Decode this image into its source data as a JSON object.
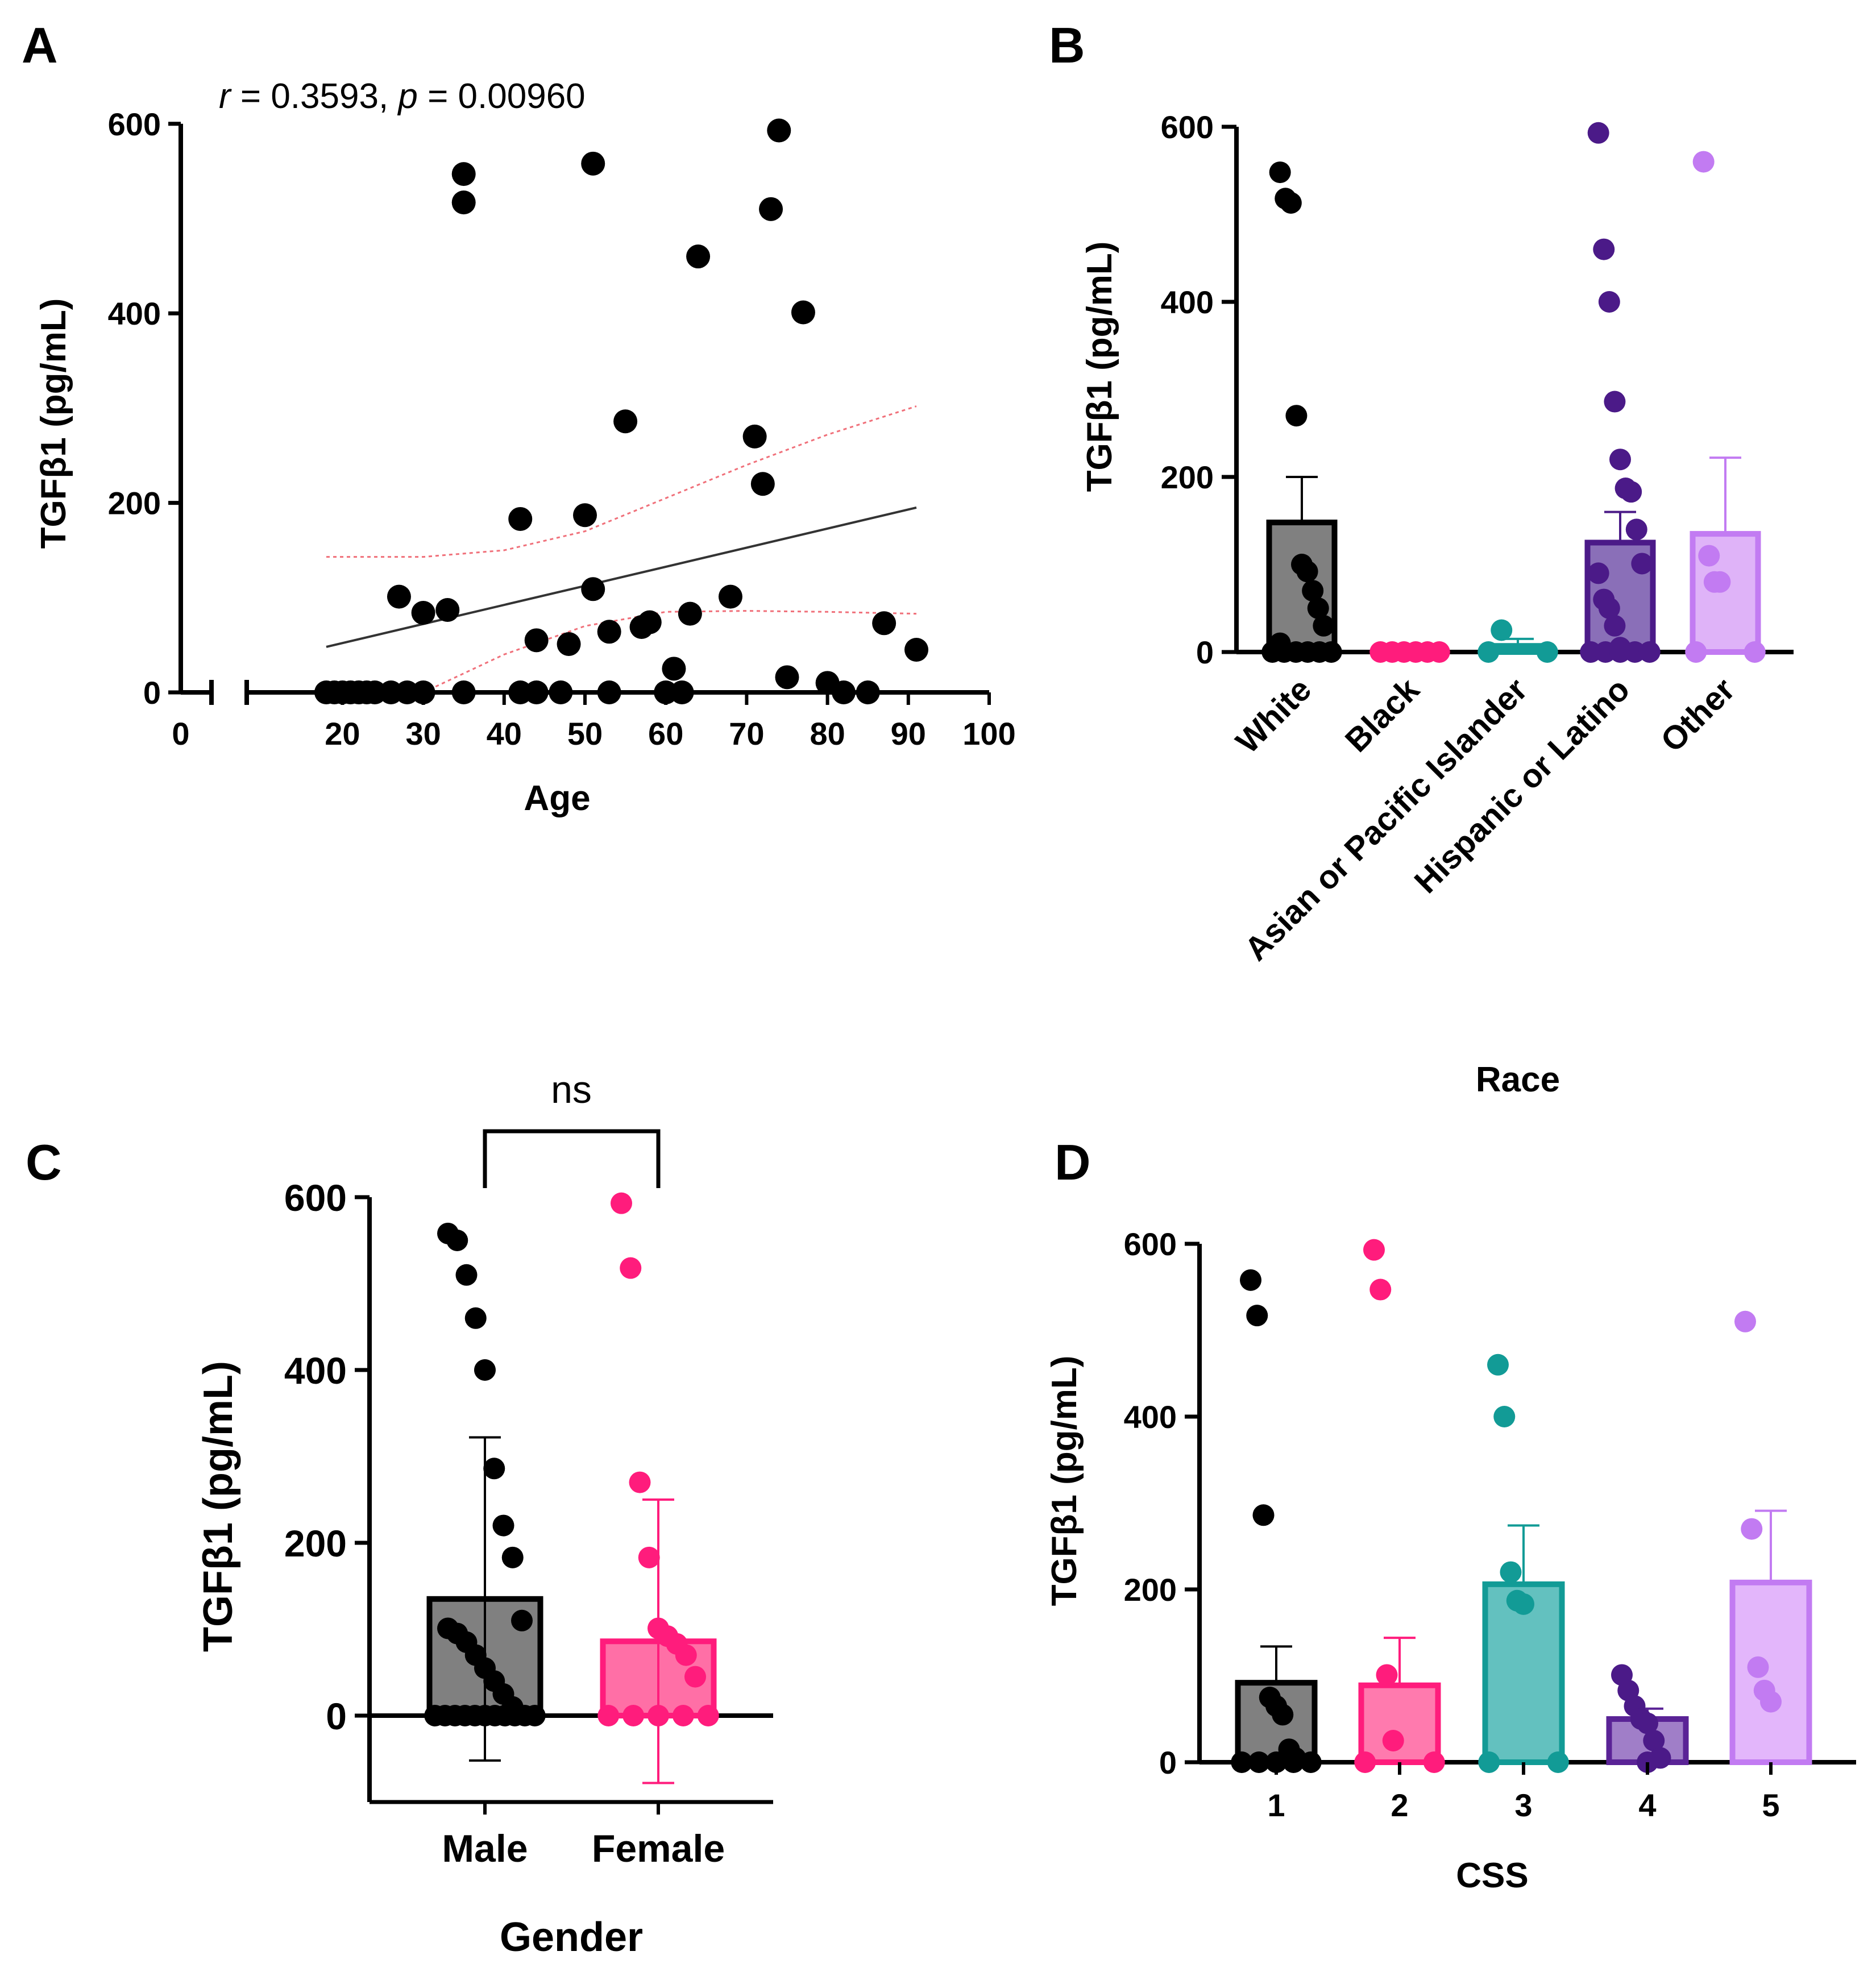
{
  "chart_data": [
    {
      "panel": "A",
      "type": "scatter",
      "annotation": {
        "r_symbol": "r",
        "r_text": " = 0.3593, ",
        "p_symbol": "p",
        "p_text": " = 0.00960"
      },
      "xlabel": "Age",
      "ylabel": "TGFβ1 (pg/mL)",
      "xlim": [
        0,
        100
      ],
      "ylim": [
        0,
        600
      ],
      "xticks": [
        0,
        20,
        30,
        40,
        50,
        60,
        70,
        80,
        90,
        100
      ],
      "yticks": [
        0,
        200,
        400,
        600
      ],
      "points": [
        [
          18,
          0
        ],
        [
          19,
          0
        ],
        [
          20,
          0
        ],
        [
          21,
          0
        ],
        [
          22,
          0
        ],
        [
          23,
          0
        ],
        [
          24,
          0
        ],
        [
          26,
          0
        ],
        [
          28,
          0
        ],
        [
          30,
          0
        ],
        [
          27,
          101
        ],
        [
          30,
          84
        ],
        [
          33,
          87
        ],
        [
          35,
          0
        ],
        [
          35,
          517
        ],
        [
          35,
          547
        ],
        [
          42,
          0
        ],
        [
          42,
          183
        ],
        [
          44,
          0
        ],
        [
          44,
          55
        ],
        [
          47,
          0
        ],
        [
          48,
          51
        ],
        [
          50,
          187
        ],
        [
          51,
          558
        ],
        [
          51,
          109
        ],
        [
          53,
          64
        ],
        [
          53,
          0
        ],
        [
          55,
          286
        ],
        [
          57,
          69
        ],
        [
          58,
          74
        ],
        [
          60,
          0
        ],
        [
          61,
          25
        ],
        [
          62,
          0
        ],
        [
          63,
          83
        ],
        [
          64,
          460
        ],
        [
          68,
          101
        ],
        [
          71,
          270
        ],
        [
          72,
          220
        ],
        [
          73,
          510
        ],
        [
          74,
          593
        ],
        [
          75,
          16
        ],
        [
          77,
          401
        ],
        [
          80,
          10
        ],
        [
          82,
          0
        ],
        [
          85,
          0
        ],
        [
          87,
          73
        ],
        [
          91,
          45
        ]
      ],
      "regression": {
        "x": [
          18,
          91
        ],
        "y": [
          48,
          195
        ],
        "color": "#333333"
      },
      "ci_upper": {
        "x": [
          18,
          30,
          40,
          50,
          60,
          70,
          80,
          91
        ],
        "y": [
          143,
          143,
          150,
          170,
          205,
          240,
          272,
          302
        ],
        "color": "#f0707a"
      },
      "ci_lower": {
        "x": [
          30,
          40,
          50,
          60,
          70,
          80,
          91
        ],
        "y": [
          0,
          40,
          70,
          85,
          86,
          85,
          83
        ],
        "color": "#f0707a"
      }
    },
    {
      "panel": "B",
      "type": "bar",
      "xlabel": "Race",
      "ylabel": "TGFβ1 (pg/mL)",
      "ylim": [
        0,
        600
      ],
      "yticks": [
        0,
        200,
        400,
        600
      ],
      "categories": [
        "White",
        "Black",
        "Asian or Pacific Islander",
        "Hispanic or Latino",
        "Other"
      ],
      "values": [
        148,
        0,
        7,
        125,
        135
      ],
      "error": [
        52,
        0,
        8,
        35,
        87
      ],
      "fills": [
        "#808080",
        "#ff1c7c",
        "#129b96",
        "#8a6fb8",
        "#dfb3f8"
      ],
      "strokes": [
        "#000000",
        "#ff1c7c",
        "#129b96",
        "#4b1a88",
        "#c27bf2"
      ],
      "points": [
        [
          548,
          518,
          513,
          270,
          100,
          92,
          70,
          50,
          30,
          10,
          0,
          0,
          0,
          0,
          0,
          0
        ],
        [
          0,
          0,
          0,
          0,
          0,
          0
        ],
        [
          0,
          25,
          0
        ],
        [
          593,
          460,
          400,
          286,
          220,
          187,
          183,
          140,
          101,
          90,
          60,
          50,
          30,
          5,
          0,
          0,
          0,
          0,
          0
        ],
        [
          560,
          110,
          80,
          80,
          0,
          0
        ]
      ]
    },
    {
      "panel": "C",
      "type": "bar",
      "xlabel": "Gender",
      "ylabel": "TGFβ1 (pg/mL)",
      "ylim": [
        -100,
        600
      ],
      "yticks": [
        0,
        200,
        400,
        600
      ],
      "categories": [
        "Male",
        "Female"
      ],
      "values": [
        135,
        86
      ],
      "error": [
        187,
        164
      ],
      "significance": "ns",
      "fills": [
        "#808080",
        "#ff6fa6"
      ],
      "strokes": [
        "#000000",
        "#ff1c7c"
      ],
      "points": [
        [
          558,
          550,
          510,
          460,
          400,
          286,
          220,
          183,
          110,
          101,
          95,
          85,
          70,
          55,
          40,
          25,
          10,
          0,
          0,
          0,
          0,
          0,
          0,
          0,
          0,
          0,
          0,
          0
        ],
        [
          593,
          518,
          270,
          183,
          101,
          92,
          83,
          70,
          45,
          0,
          0,
          0,
          0,
          0
        ]
      ]
    },
    {
      "panel": "D",
      "type": "bar",
      "xlabel": "CSS",
      "ylabel": "TGFβ1 (pg/mL)",
      "ylim": [
        0,
        600
      ],
      "yticks": [
        0,
        200,
        400,
        600
      ],
      "categories": [
        "1",
        "2",
        "3",
        "4",
        "5"
      ],
      "values": [
        92,
        89,
        206,
        50,
        208
      ],
      "error": [
        42,
        55,
        68,
        12,
        83
      ],
      "fills": [
        "#808080",
        "#ff7aae",
        "#63c1bf",
        "#a07ec8",
        "#e3b6fb"
      ],
      "strokes": [
        "#000000",
        "#ff1c7c",
        "#129b96",
        "#5a2396",
        "#c27bf2"
      ],
      "points": [
        [
          558,
          517,
          286,
          75,
          65,
          55,
          15,
          5,
          0,
          0,
          0,
          0,
          0
        ],
        [
          593,
          547,
          101,
          25,
          0,
          0
        ],
        [
          460,
          400,
          220,
          187,
          183,
          0,
          0
        ],
        [
          101,
          83,
          65,
          50,
          45,
          25,
          5,
          0
        ],
        [
          510,
          270,
          110,
          83,
          70
        ]
      ]
    }
  ],
  "panel_labels": [
    "A",
    "B",
    "C",
    "D"
  ]
}
